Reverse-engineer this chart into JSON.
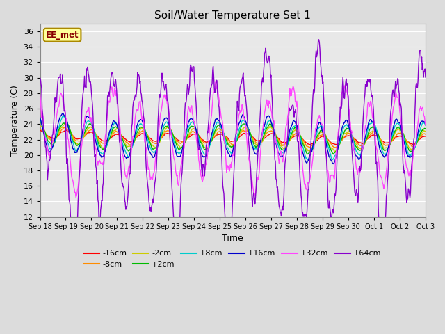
{
  "title": "Soil/Water Temperature Set 1",
  "xlabel": "Time",
  "ylabel": "Temperature (C)",
  "ylim": [
    12,
    37
  ],
  "yticks": [
    12,
    14,
    16,
    18,
    20,
    22,
    24,
    26,
    28,
    30,
    32,
    34,
    36
  ],
  "n_days": 15,
  "annotation_text": "EE_met",
  "annotation_bg": "#FFFF99",
  "annotation_border": "#AA8800",
  "annotation_text_color": "#880000",
  "series_colors": {
    "-16cm": "#FF0000",
    "-8cm": "#FF8C00",
    "-2cm": "#CCCC00",
    "+2cm": "#00BB00",
    "+8cm": "#00CCCC",
    "+16cm": "#0000CC",
    "+32cm": "#FF44FF",
    "+64cm": "#8800CC"
  },
  "bg_color": "#DCDCDC",
  "plot_bg": "#E8E8E8",
  "grid_color": "#FFFFFF",
  "xtick_labels": [
    "Sep 18",
    "Sep 19",
    "Sep 20",
    "Sep 21",
    "Sep 22",
    "Sep 23",
    "Sep 24",
    "Sep 25",
    "Sep 26",
    "Sep 27",
    "Sep 28",
    "Sep 29",
    "Sep 30",
    "Oct 1",
    "Oct 2",
    "Oct 3"
  ]
}
